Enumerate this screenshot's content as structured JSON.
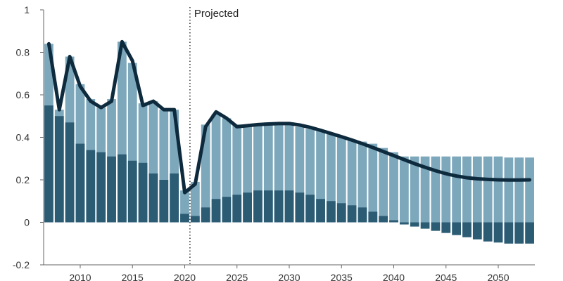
{
  "chart_data": {
    "type": "bar",
    "x": [
      2007,
      2008,
      2009,
      2010,
      2011,
      2012,
      2013,
      2014,
      2015,
      2016,
      2017,
      2018,
      2019,
      2020,
      2021,
      2022,
      2023,
      2024,
      2025,
      2026,
      2027,
      2028,
      2029,
      2030,
      2031,
      2032,
      2033,
      2034,
      2035,
      2036,
      2037,
      2038,
      2039,
      2040,
      2041,
      2042,
      2043,
      2044,
      2045,
      2046,
      2047,
      2048,
      2049,
      2050,
      2051,
      2052,
      2053
    ],
    "series": [
      {
        "values": [
          0.55,
          0.5,
          0.47,
          0.37,
          0.34,
          0.33,
          0.31,
          0.32,
          0.29,
          0.28,
          0.23,
          0.2,
          0.23,
          0.04,
          0.03,
          0.07,
          0.11,
          0.12,
          0.13,
          0.14,
          0.15,
          0.15,
          0.15,
          0.15,
          0.14,
          0.13,
          0.11,
          0.1,
          0.09,
          0.08,
          0.07,
          0.05,
          0.03,
          0.01,
          -0.01,
          -0.02,
          -0.03,
          -0.04,
          -0.05,
          -0.06,
          -0.07,
          -0.08,
          -0.09,
          -0.095,
          -0.1,
          -0.1,
          -0.1
        ]
      },
      {
        "values": [
          0.84,
          0.53,
          0.78,
          0.65,
          0.58,
          0.54,
          0.58,
          0.85,
          0.75,
          0.56,
          0.57,
          0.53,
          0.53,
          0.15,
          0.19,
          0.46,
          0.51,
          0.49,
          0.46,
          0.46,
          0.46,
          0.47,
          0.47,
          0.46,
          0.45,
          0.44,
          0.43,
          0.42,
          0.4,
          0.39,
          0.38,
          0.37,
          0.35,
          0.33,
          0.31,
          0.31,
          0.31,
          0.31,
          0.31,
          0.31,
          0.31,
          0.31,
          0.31,
          0.31,
          0.305,
          0.305,
          0.305
        ]
      },
      {
        "values": [
          0.84,
          0.53,
          0.78,
          0.64,
          0.57,
          0.54,
          0.57,
          0.85,
          0.76,
          0.55,
          0.57,
          0.53,
          0.53,
          0.14,
          0.18,
          0.45,
          0.52,
          0.49,
          0.45,
          0.455,
          0.46,
          0.463,
          0.465,
          0.465,
          0.458,
          0.447,
          0.433,
          0.418,
          0.403,
          0.387,
          0.37,
          0.352,
          0.333,
          0.314,
          0.295,
          0.276,
          0.259,
          0.243,
          0.229,
          0.218,
          0.21,
          0.205,
          0.202,
          0.2,
          0.199,
          0.199,
          0.2
        ]
      }
    ],
    "ylim": [
      -0.2,
      1
    ],
    "yticks": [
      "-0.2",
      "0",
      "0.2",
      "0.4",
      "0.6",
      "0.8",
      "1"
    ],
    "xticks": [
      "2010",
      "2015",
      "2020",
      "2025",
      "2030",
      "2035",
      "2040",
      "2045",
      "2050"
    ],
    "projection_start": 2020.5,
    "annotation": "Projected",
    "grid": false,
    "colors": {
      "dark_bar": "#2b5c74",
      "light_bar": "#7da7bb",
      "line": "#0e2a3d",
      "axis": "#666666",
      "divider": "#333333"
    }
  }
}
